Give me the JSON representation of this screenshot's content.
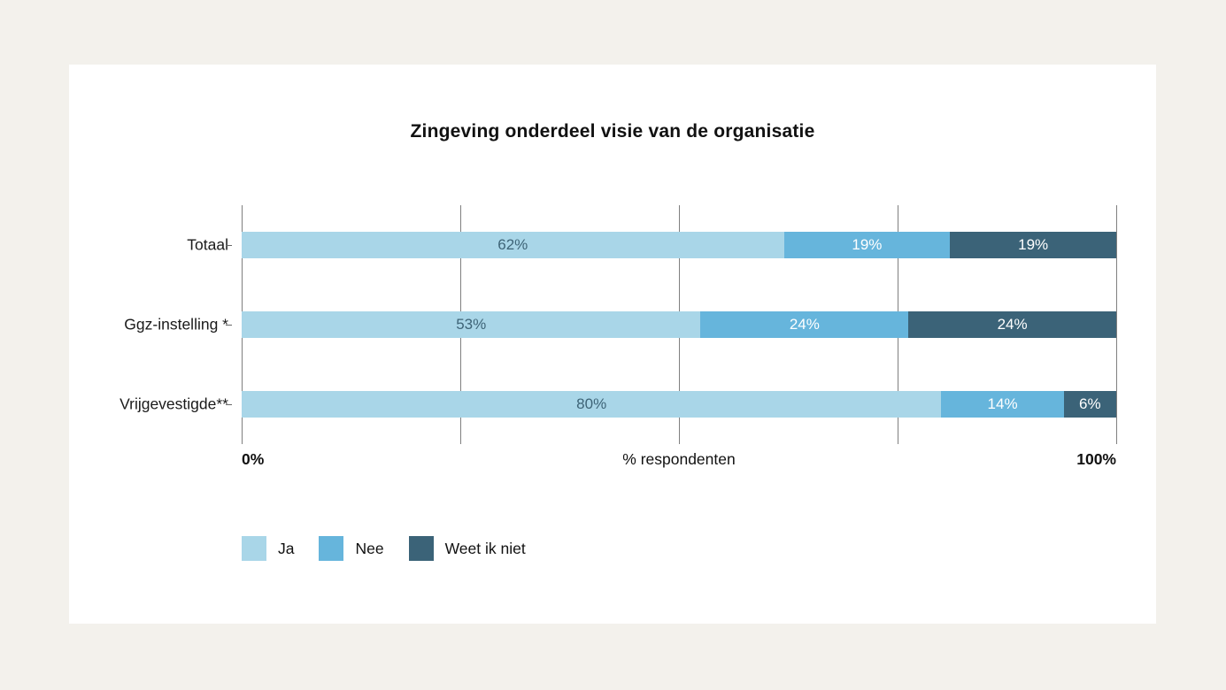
{
  "page": {
    "background_color": "#F3F1EC",
    "card_background_color": "#FFFFFF"
  },
  "chart_data": {
    "type": "bar",
    "orientation": "horizontal",
    "stacked": true,
    "title": "Zingeving onderdeel visie van de organisatie",
    "categories": [
      "Totaal",
      "Ggz-instelling *",
      "Vrijgevestigde**"
    ],
    "series": [
      {
        "name": "Ja",
        "color": "#A9D6E8",
        "label_color": "#3E6477",
        "values": [
          62,
          53,
          80
        ]
      },
      {
        "name": "Nee",
        "color": "#66B5DC",
        "label_color": "#FFFFFF",
        "values": [
          19,
          24,
          14
        ]
      },
      {
        "name": "Weet ik niet",
        "color": "#3B6378",
        "label_color": "#FFFFFF",
        "values": [
          19,
          24,
          6
        ]
      }
    ],
    "value_suffix": "%",
    "xlabel": "% respondenten",
    "x_tick_labels": [
      "0%",
      "100%"
    ],
    "xlim": [
      0,
      100
    ],
    "grid_positions_pct": [
      0,
      25,
      50,
      75,
      100
    ],
    "grid_color": "#7F7F7F",
    "grid_on": true,
    "legend_position": "bottom-left",
    "legend": [
      "Ja",
      "Nee",
      "Weet ik niet"
    ]
  }
}
